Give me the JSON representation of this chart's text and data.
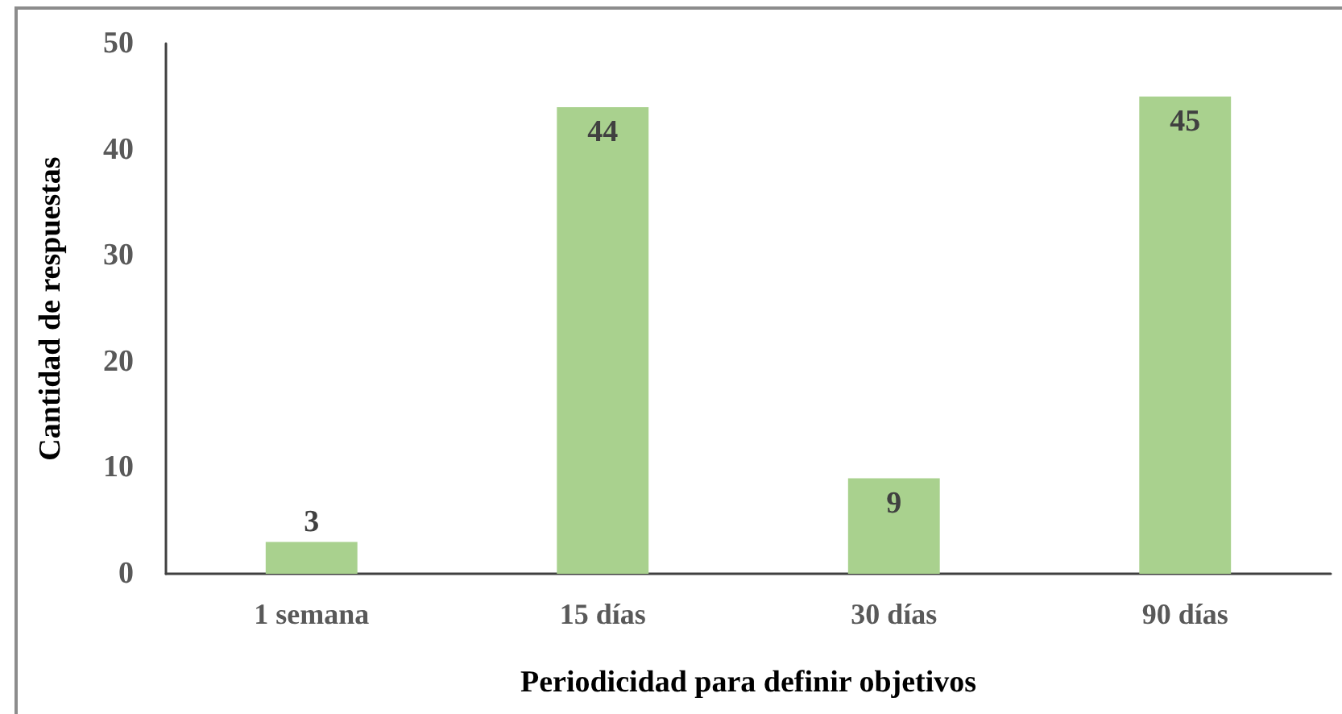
{
  "chart_data": {
    "type": "bar",
    "xlabel": "Periodicidad para definir objetivos",
    "ylabel": "Cantidad de respuestas",
    "categories": [
      "1 semana",
      "15 días",
      "30 días",
      "90 días"
    ],
    "values": [
      3,
      44,
      9,
      45
    ],
    "color": "#a9d18e",
    "ylim": [
      0,
      50
    ],
    "yticks": [
      0,
      10,
      20,
      30,
      40,
      50
    ],
    "grid": false,
    "data_labels": true
  }
}
